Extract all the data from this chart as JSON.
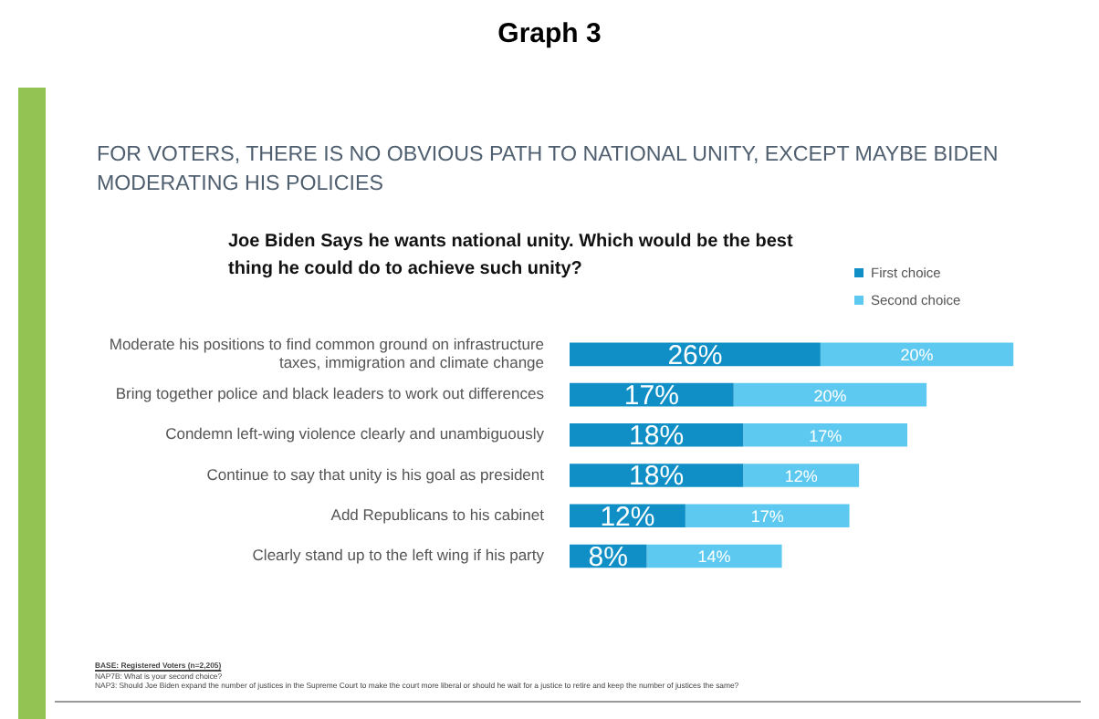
{
  "chart_data": {
    "type": "bar",
    "orientation": "horizontal",
    "stacked": true,
    "data_labels": true,
    "legend": "top right",
    "tick_labels": "y",
    "title": "Joe Biden Says he wants national unity. Which would be the best thing he could do to achieve such unity?",
    "subtitle": "FOR VOTERS, THERE IS NO OBVIOUS PATH TO NATIONAL UNITY, EXCEPT MAYBE BIDEN MODERATING HIS POLICIES",
    "annotations": [
      "Graph 3",
      "BASE: Registered Voters (n=2,205)",
      "NAP7B: What is your second choice?",
      "NAP3: Should Joe Biden expand the number of justices in the Supreme Court to make the court more liberal or should he wait for a justice to retire and keep the number of justices the same?"
    ],
    "categories": [
      "Moderate his positions to find common ground on infrastructure taxes, immigration and climate change",
      "Bring together police and black leaders to work out differences",
      "Condemn left-wing violence clearly and unambiguously",
      "Continue to say that unity is his goal as president",
      "Add Republicans to his cabinet",
      "Clearly stand up to the left wing if his party"
    ],
    "series": [
      {
        "name": "First choice",
        "color": "#0f8fc6",
        "values": [
          26,
          17,
          18,
          18,
          12,
          8
        ],
        "value_labels": [
          "26%",
          "17%",
          "18%",
          "18%",
          "12%",
          "8%"
        ]
      },
      {
        "name": "Second choice",
        "color": "#5ec9f0",
        "values": [
          20,
          20,
          17,
          12,
          17,
          14
        ],
        "value_labels": [
          "20%",
          "20%",
          "17%",
          "12%",
          "17%",
          "14%"
        ]
      }
    ]
  }
}
